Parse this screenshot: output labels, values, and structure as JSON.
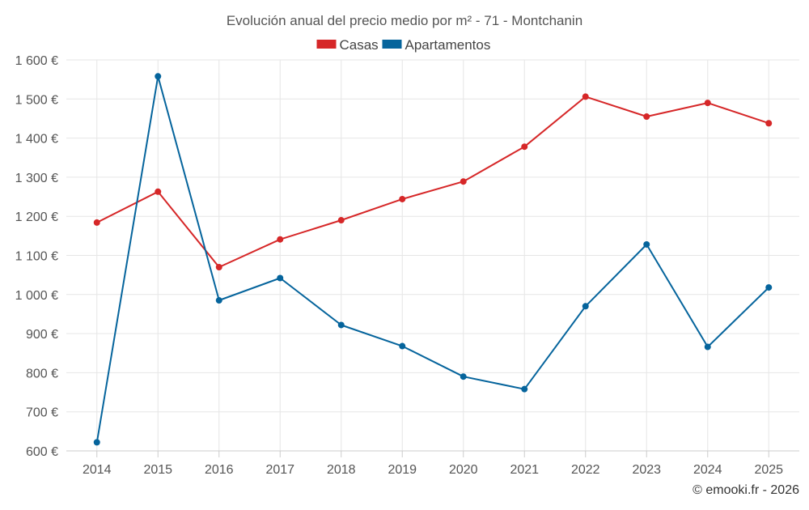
{
  "chart_data": {
    "type": "line",
    "title": "Evolución anual del precio medio por m² - 71 - Montchanin",
    "categories": [
      "2014",
      "2015",
      "2016",
      "2017",
      "2018",
      "2019",
      "2020",
      "2021",
      "2022",
      "2023",
      "2024",
      "2025"
    ],
    "ylim": [
      600,
      1600
    ],
    "yticks": [
      600,
      700,
      800,
      900,
      1000,
      1100,
      1200,
      1300,
      1400,
      1500,
      1600
    ],
    "ytick_labels": [
      "600 €",
      "700 €",
      "800 €",
      "900 €",
      "1 000 €",
      "1 100 €",
      "1 200 €",
      "1 300 €",
      "1 400 €",
      "1 500 €",
      "1 600 €"
    ],
    "grid": true,
    "legend_position": "top-center",
    "series": [
      {
        "name": "Casas",
        "color": "#d62728",
        "values": [
          1184,
          1263,
          1070,
          1141,
          1190,
          1244,
          1289,
          1378,
          1506,
          1455,
          1490,
          1438
        ]
      },
      {
        "name": "Apartamentos",
        "color": "#05649c",
        "values": [
          622,
          1558,
          985,
          1042,
          922,
          868,
          790,
          758,
          970,
          1128,
          866,
          1018
        ]
      }
    ],
    "credit": "© emooki.fr - 2026"
  }
}
